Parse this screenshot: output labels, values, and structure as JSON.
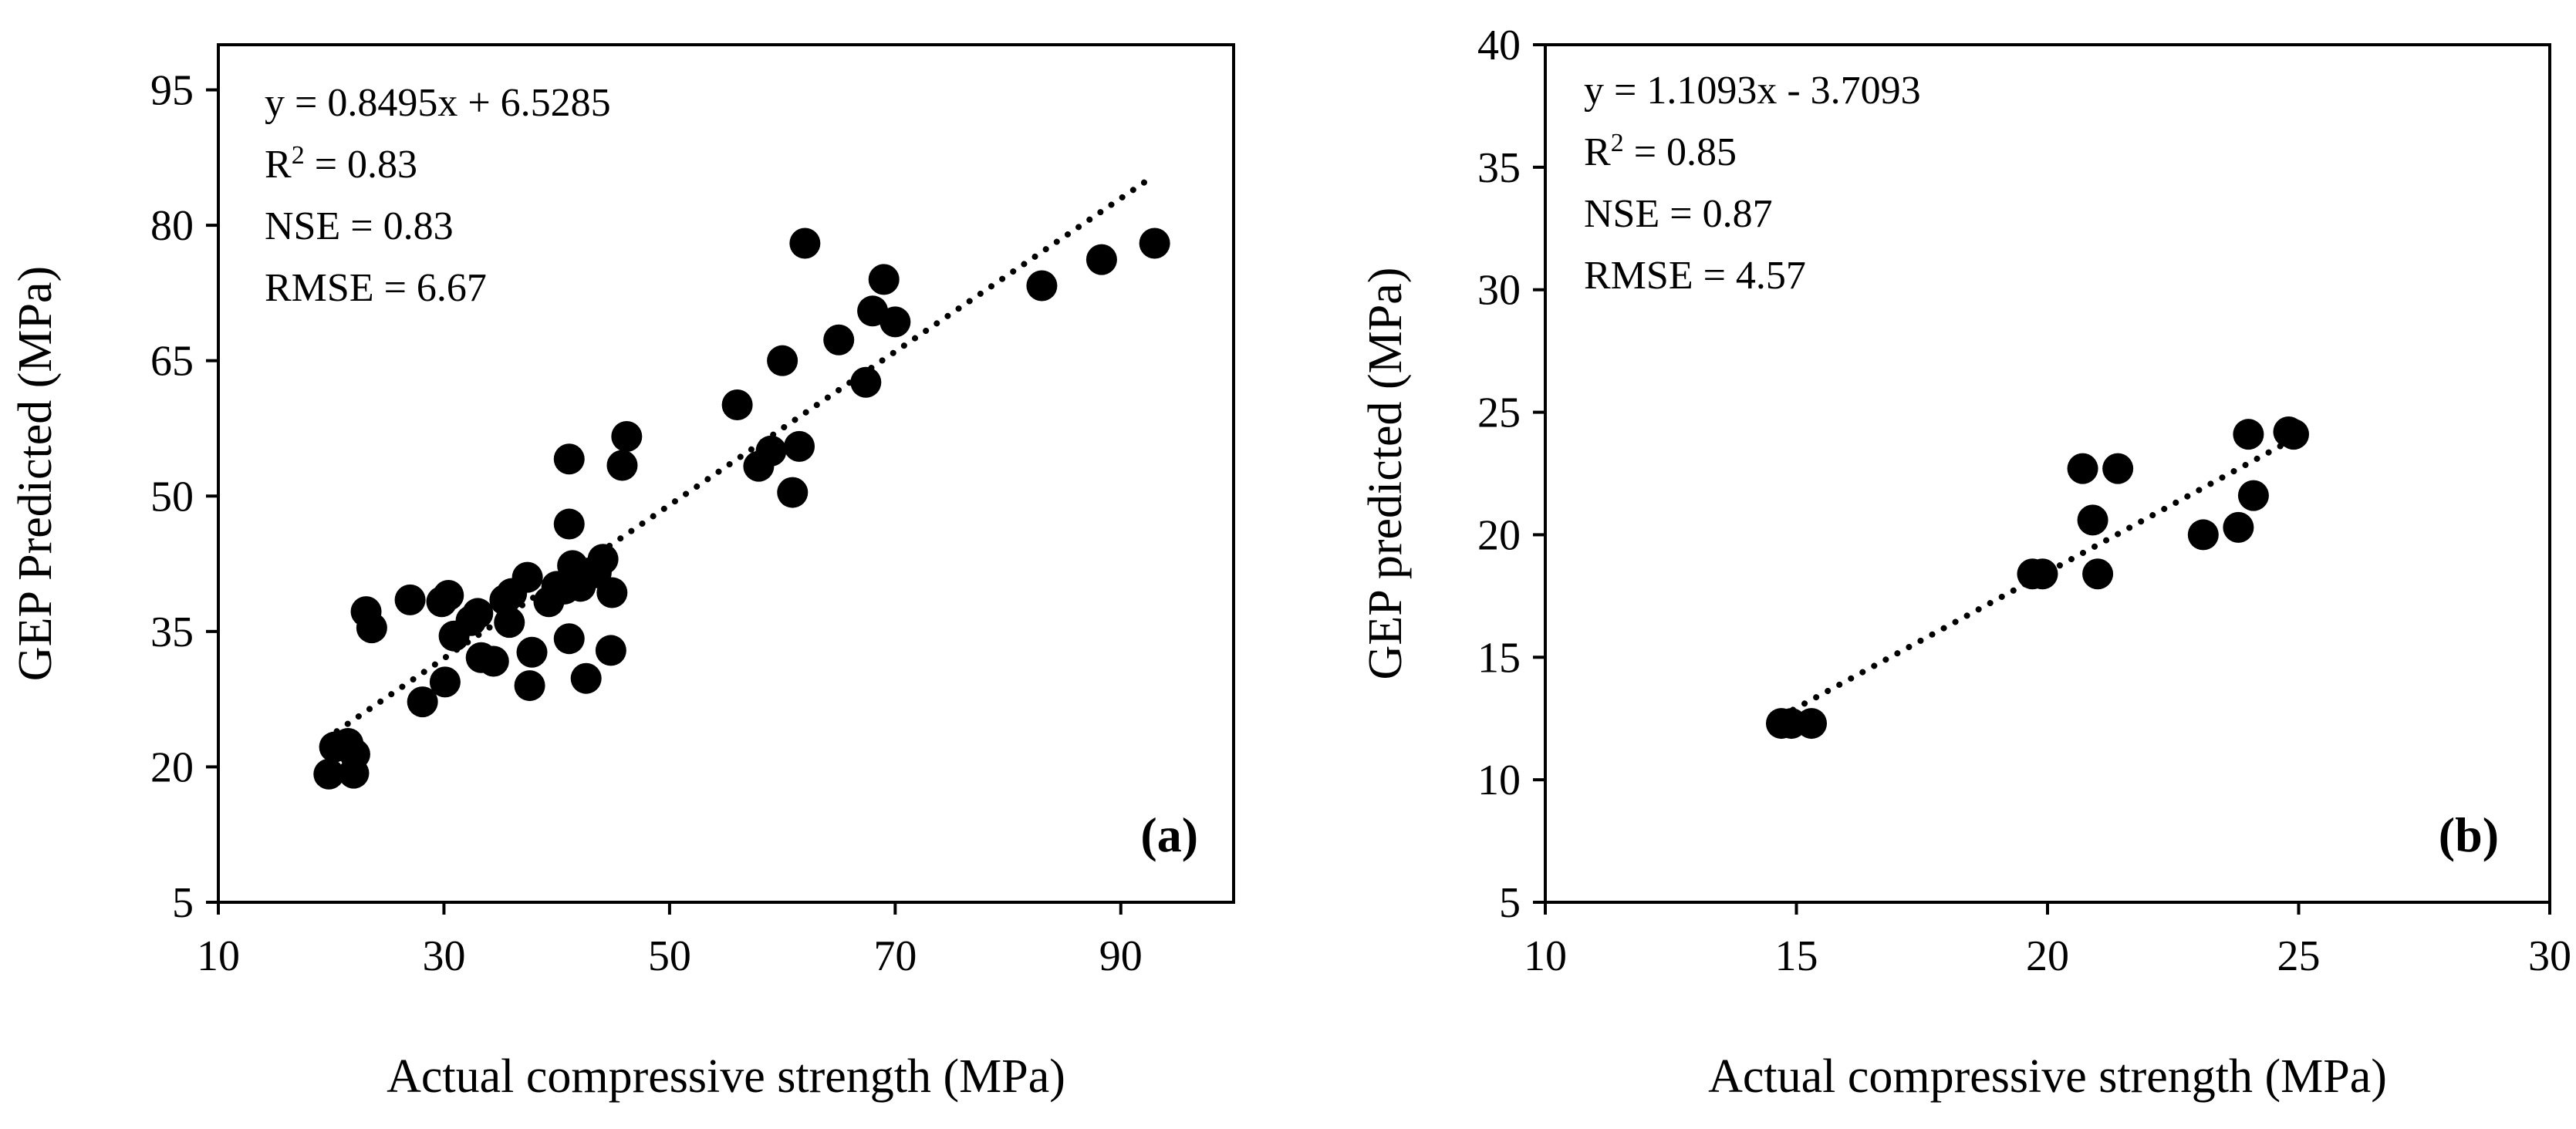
{
  "chart_data": [
    {
      "type": "scatter",
      "panel_label": "(a)",
      "xlabel": "Actual compressive strength (MPa)",
      "ylabel": "GEP Predicted (MPa)",
      "xlim": [
        10,
        100
      ],
      "ylim": [
        5,
        100
      ],
      "xticks": [
        10,
        30,
        50,
        70,
        90
      ],
      "yticks": [
        5,
        20,
        35,
        50,
        65,
        80,
        95
      ],
      "grid": false,
      "stats": {
        "equation": "y = 0.8495x + 6.5285",
        "r2_prefix": "R",
        "r2_sup": "2",
        "r2_suffix": " = 0.83",
        "nse": "NSE = 0.83",
        "rmse": "RMSE = 6.67"
      },
      "trendline": {
        "slope": 0.8495,
        "intercept": 6.5285,
        "x_range": [
          20.5,
          93
        ]
      },
      "points": [
        [
          19.8,
          19.2
        ],
        [
          20.3,
          22.2
        ],
        [
          21.5,
          22.6
        ],
        [
          22.1,
          21.4
        ],
        [
          22.0,
          19.3
        ],
        [
          23.1,
          37.2
        ],
        [
          23.6,
          35.4
        ],
        [
          27.0,
          38.5
        ],
        [
          28.1,
          27.2
        ],
        [
          29.8,
          38.3
        ],
        [
          30.4,
          39.0
        ],
        [
          30.1,
          29.4
        ],
        [
          30.9,
          34.5
        ],
        [
          32.4,
          36.2
        ],
        [
          33.0,
          37.0
        ],
        [
          33.3,
          32.1
        ],
        [
          34.4,
          31.7
        ],
        [
          35.4,
          38.5
        ],
        [
          36.0,
          39.2
        ],
        [
          35.8,
          36.0
        ],
        [
          37.4,
          41.0
        ],
        [
          37.8,
          32.7
        ],
        [
          37.6,
          29.0
        ],
        [
          39.3,
          38.3
        ],
        [
          40.0,
          40.0
        ],
        [
          40.7,
          39.7
        ],
        [
          41.1,
          34.2
        ],
        [
          41.4,
          42.3
        ],
        [
          41.1,
          46.9
        ],
        [
          41.1,
          54.1
        ],
        [
          42.1,
          40.0
        ],
        [
          42.6,
          29.8
        ],
        [
          43.5,
          41.5
        ],
        [
          44.1,
          43.0
        ],
        [
          44.9,
          39.3
        ],
        [
          44.8,
          32.9
        ],
        [
          45.8,
          53.4
        ],
        [
          46.2,
          56.6
        ],
        [
          56.0,
          60.1
        ],
        [
          57.9,
          53.3
        ],
        [
          59.0,
          55.0
        ],
        [
          60.0,
          65.0
        ],
        [
          60.9,
          50.4
        ],
        [
          61.5,
          55.5
        ],
        [
          62.0,
          78.0
        ],
        [
          65.0,
          67.3
        ],
        [
          67.4,
          62.6
        ],
        [
          68.0,
          70.5
        ],
        [
          69.0,
          74.0
        ],
        [
          70.0,
          69.3
        ],
        [
          83.0,
          73.3
        ],
        [
          88.3,
          76.2
        ],
        [
          93.0,
          78.0
        ]
      ]
    },
    {
      "type": "scatter",
      "panel_label": "(b)",
      "xlabel": "Actual compressive strength (MPa)",
      "ylabel": "GEP predicted (MPa)",
      "xlim": [
        10,
        30
      ],
      "ylim": [
        5,
        40
      ],
      "xticks": [
        10,
        15,
        20,
        25,
        30
      ],
      "yticks": [
        5,
        10,
        15,
        20,
        25,
        30,
        35,
        40
      ],
      "grid": false,
      "stats": {
        "equation": "y = 1.1093x - 3.7093",
        "r2_prefix": "R",
        "r2_sup": "2",
        "r2_suffix": " = 0.85",
        "nse": "NSE = 0.87",
        "rmse": "RMSE = 4.57"
      },
      "trendline": {
        "slope": 1.1093,
        "intercept": -3.7093,
        "x_range": [
          14.7,
          24.9
        ]
      },
      "points": [
        [
          14.7,
          12.3
        ],
        [
          14.9,
          12.3
        ],
        [
          15.3,
          12.3
        ],
        [
          19.7,
          18.4
        ],
        [
          19.9,
          18.4
        ],
        [
          20.7,
          22.7
        ],
        [
          20.9,
          20.6
        ],
        [
          21.0,
          18.4
        ],
        [
          21.4,
          22.7
        ],
        [
          23.1,
          20.0
        ],
        [
          23.8,
          20.3
        ],
        [
          24.0,
          24.1
        ],
        [
          24.1,
          21.6
        ],
        [
          24.8,
          24.2
        ],
        [
          24.9,
          24.1
        ]
      ]
    }
  ]
}
